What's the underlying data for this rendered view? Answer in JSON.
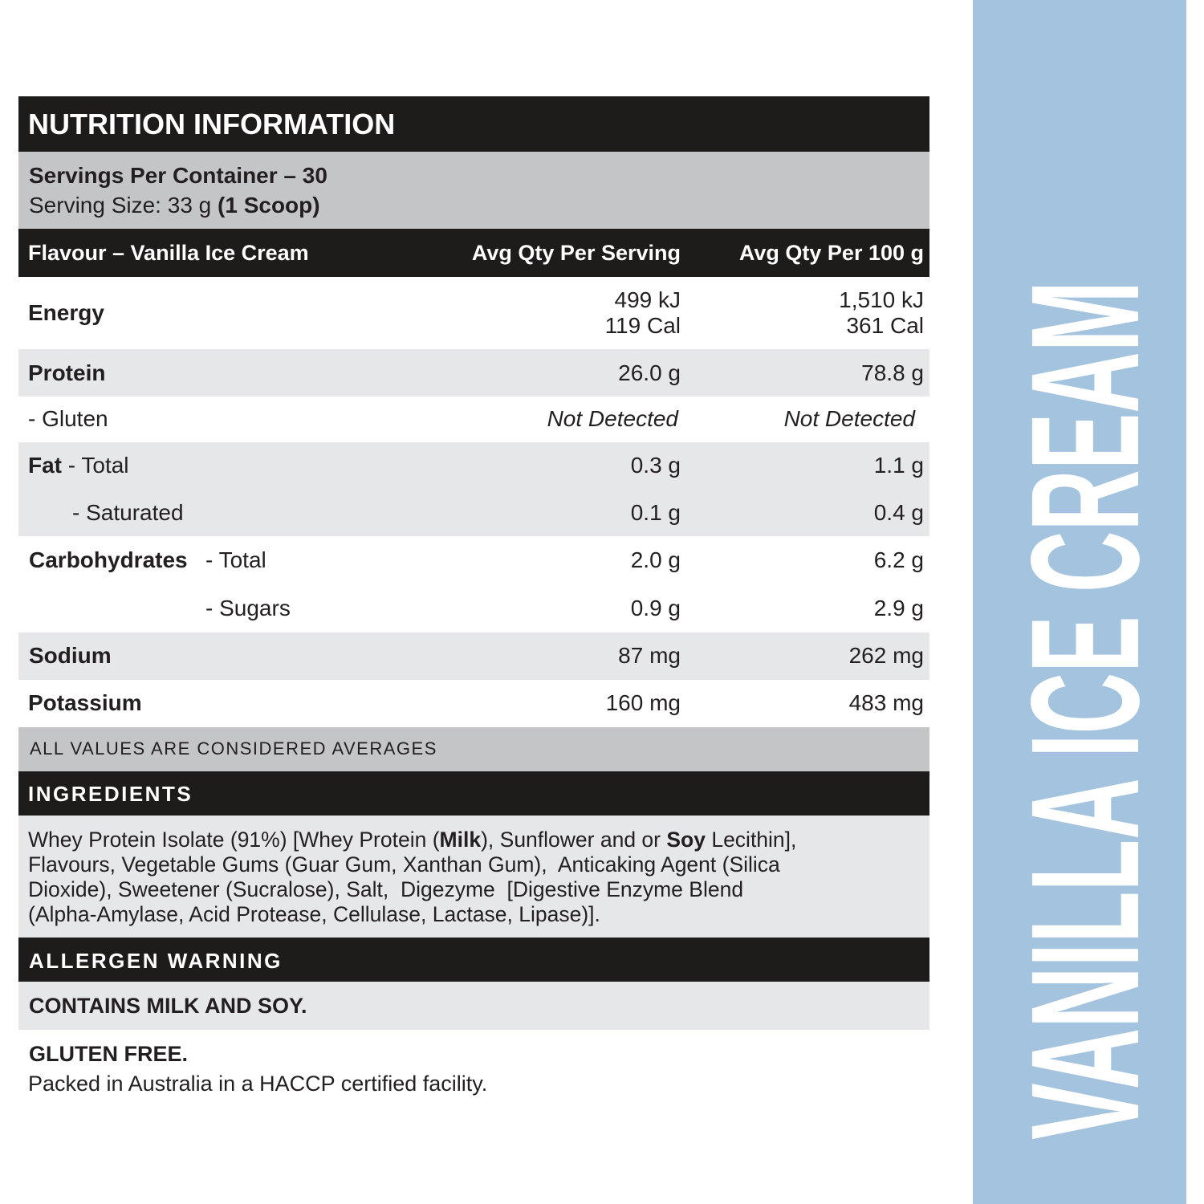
{
  "header": {
    "title": "NUTRITION INFORMATION",
    "servings": "Servings Per Container – 30",
    "serving_size": "Serving Size: 33 g",
    "serving_size_note": "(1 Scoop)"
  },
  "table": {
    "columns": [
      "Flavour – Vanilla Ice Cream",
      "Avg Qty Per Serving",
      "Avg Qty Per 100 g"
    ],
    "energy": {
      "label": "Energy",
      "per_serving": [
        "499 kJ",
        "119 Cal"
      ],
      "per_100g": [
        "1,510 kJ",
        "361 Cal"
      ]
    },
    "protein": {
      "label": "Protein",
      "per_serving": "26.0 g",
      "per_100g": "78.8 g"
    },
    "gluten": {
      "label": "- Gluten",
      "per_serving": "Not Detected",
      "per_100g": "Not Detected"
    },
    "fat_total": {
      "label": "Fat",
      "sublabel": "- Total",
      "per_serving": "0.3 g",
      "per_100g": "1.1 g"
    },
    "fat_saturated": {
      "sublabel": "- Saturated",
      "per_serving": "0.1 g",
      "per_100g": "0.4 g"
    },
    "carbohydrates_total": {
      "label": "Carbohydrates",
      "sublabel": "- Total",
      "per_serving": "2.0 g",
      "per_100g": "6.2 g"
    },
    "carbohydrates_sugars": {
      "sublabel": "- Sugars",
      "per_serving": "0.9 g",
      "per_100g": "2.9 g"
    },
    "sodium": {
      "label": "Sodium",
      "per_serving": "87 mg",
      "per_100g": "262 mg"
    },
    "potassium": {
      "label": "Potassium",
      "per_serving": "160 mg",
      "per_100g": "483 mg"
    },
    "note": "ALL VALUES ARE CONSIDERED AVERAGES"
  },
  "ingredients": {
    "title": "INGREDIENTS",
    "lines": [
      [
        "Whey Protein Isolate (91%) [Whey Protein (",
        "Milk",
        "), Sunflower and or ",
        "Soy",
        " Lecithin],"
      ],
      [
        "Flavours, Vegetable Gums (Guar Gum, Xanthan Gum),  Anticaking Agent (Silica"
      ],
      [
        "Dioxide), Sweetener (Sucralose), Salt,  Digezyme  [Digestive Enzyme Blend"
      ],
      [
        "(Alpha-Amylase, Acid Protease, Cellulase, Lactase, Lipase)]."
      ]
    ]
  },
  "allergen": {
    "title": "ALLERGEN WARNING",
    "text": "CONTAINS MILK AND SOY."
  },
  "footer": {
    "gluten_free": "GLUTEN FREE.",
    "packed": "Packed in Australia in a HACCP certified facility."
  },
  "side_label": "VANILLA ICE CREAM"
}
